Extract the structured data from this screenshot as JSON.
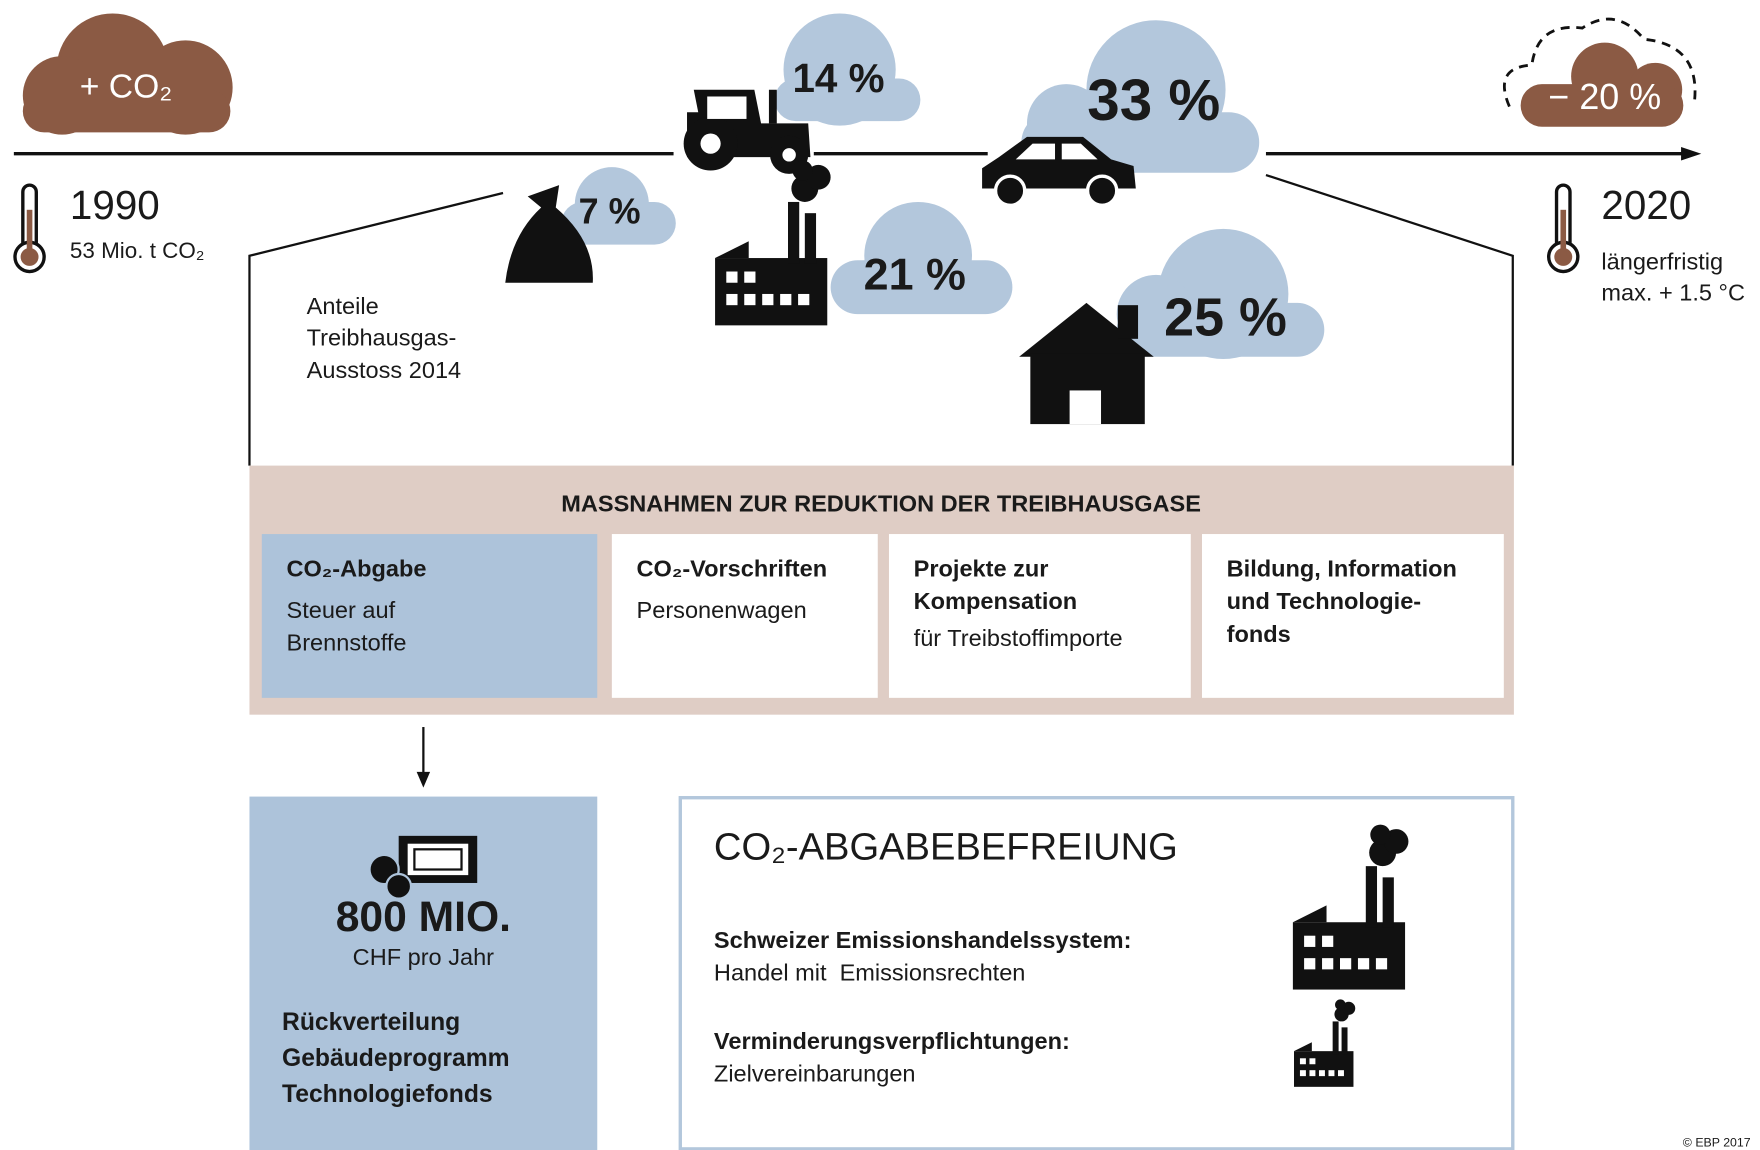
{
  "timeline": {
    "start": {
      "cloud": "+ CO₂",
      "year": "1990",
      "value": "53 Mio. t CO₂"
    },
    "end": {
      "cloud": "− 20 %",
      "year": "2020",
      "note": [
        "längerfristig",
        "max. + 1.5 °C"
      ]
    }
  },
  "sectors": {
    "caption": [
      "Anteile",
      "Treibhausgas-",
      "Ausstoss 2014"
    ],
    "shares": [
      "7 %",
      "14 %",
      "21 %",
      "33 %",
      "25 %"
    ]
  },
  "measures": {
    "title": "MASSNAHMEN ZUR REDUKTION DER TREIBHAUSGASE",
    "items": [
      {
        "title": "CO₂-Abgabe",
        "text": [
          "Steuer auf",
          "Brennstoffe"
        ]
      },
      {
        "title": "CO₂-Vorschriften",
        "text": [
          "Personenwagen"
        ]
      },
      {
        "title": "Projekte zur",
        "title2": "Kompensation",
        "text": [
          "für Treibstoffimporte"
        ]
      },
      {
        "title": "Bildung, Information",
        "title2": "und Technologie-",
        "title3": "fonds"
      }
    ]
  },
  "revenue": {
    "amount": "800 MIO.",
    "unit": "CHF pro Jahr",
    "uses": [
      "Rückverteilung",
      "Gebäudeprogramm",
      "Technologiefonds"
    ]
  },
  "exemption": {
    "title": "CO₂-ABGABEBEFREIUNG",
    "items": [
      {
        "title": "Schweizer Emissionshandelssystem:",
        "text": "Handel mit  Emissionsrechten"
      },
      {
        "title": "Verminderungsverpflichtungen:",
        "text": "Zielvereinbarungen"
      }
    ]
  },
  "copyright": "© EBP 2017"
}
